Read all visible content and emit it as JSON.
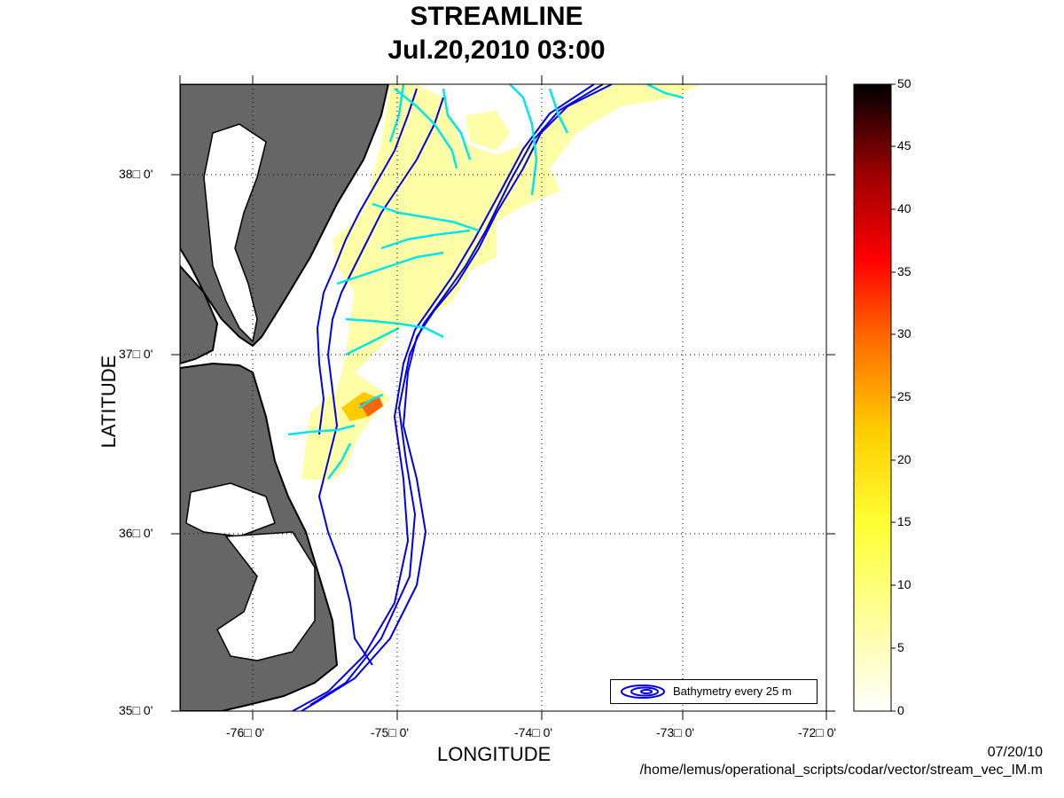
{
  "title": "STREAMLINE",
  "subtitle": "Jul.20,2010 03:00",
  "xlabel": "LONGITUDE",
  "ylabel": "LATITUDE",
  "xticks": [
    "-76□ 0'",
    "-75□ 0'",
    "-74□ 0'",
    "-73□ 0'",
    "-72□ 0'"
  ],
  "yticks": [
    "38□ 0'",
    "37□ 0'",
    "36□ 0'",
    "35□ 0'"
  ],
  "colorbar": {
    "ticks": [
      "50",
      "45",
      "40",
      "35",
      "30",
      "25",
      "20",
      "15",
      "10",
      "5",
      "0"
    ],
    "range": [
      0,
      50
    ]
  },
  "legend_label": "Bathymetry every 25 m",
  "footer_date": "07/20/10",
  "footer_path": "/home/lemus/operational_scripts/codar/vector/stream_vec_IM.m",
  "colors": {
    "land": "#666666",
    "bathymetry": "#0000ee",
    "streamline": "#00e5ee",
    "speed_low": "#ffff99"
  },
  "map_extent": {
    "lon": [
      -76.5,
      -72
    ],
    "lat": [
      35,
      38.5
    ]
  }
}
